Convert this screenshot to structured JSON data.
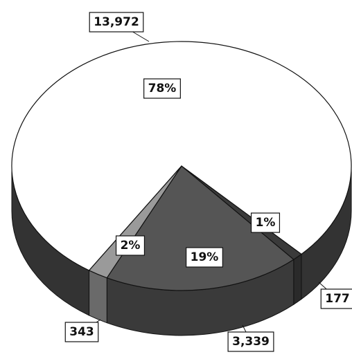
{
  "chart_data": {
    "type": "pie",
    "values": [
      13972,
      177,
      3339,
      343
    ],
    "value_labels": [
      "13,972",
      "177",
      "3,339",
      "343"
    ],
    "percent_labels": [
      "78%",
      "1%",
      "19%",
      "2%"
    ],
    "colors": [
      "#ffffff",
      "#3a3a3a",
      "#555555",
      "#9a9a9a"
    ],
    "side_colors": [
      "#333333",
      "#2a2a2a",
      "#3a3a3a",
      "#6a6a6a"
    ]
  }
}
